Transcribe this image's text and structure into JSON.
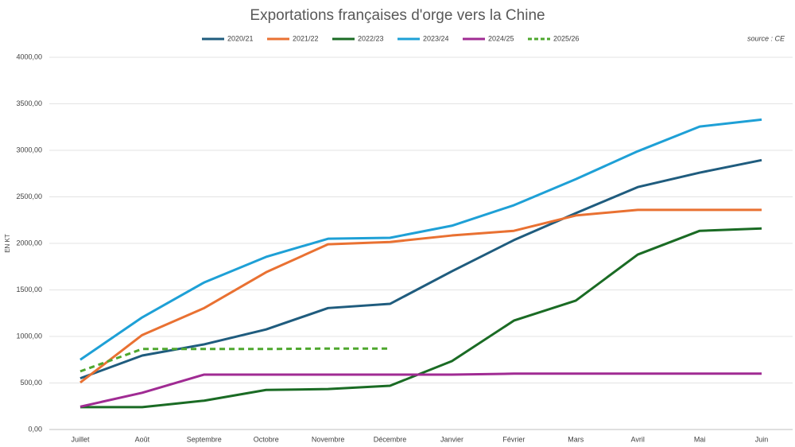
{
  "chart_data": {
    "type": "line",
    "title": "Exportations françaises d'orge vers la Chine",
    "source": "source : CE",
    "y_label": "EN KT",
    "categories": [
      "Juillet",
      "Août",
      "Septembre",
      "Octobre",
      "Novembre",
      "Décembre",
      "Janvier",
      "Février",
      "Mars",
      "Avril",
      "Mai",
      "Juin"
    ],
    "series": [
      {
        "name": "2020/21",
        "color": "#1f5c7e",
        "values": [
          550,
          795,
          915,
          1075,
          1305,
          1350,
          1700,
          2035,
          2325,
          2605,
          2760,
          2895
        ]
      },
      {
        "name": "2021/22",
        "color": "#e97132",
        "values": [
          505,
          1015,
          1305,
          1690,
          1990,
          2015,
          2085,
          2135,
          2300,
          2360,
          2360,
          2360
        ]
      },
      {
        "name": "2022/23",
        "color": "#1a6b24",
        "values": [
          240,
          240,
          310,
          425,
          435,
          470,
          735,
          1170,
          1385,
          1880,
          2135,
          2160
        ]
      },
      {
        "name": "2023/24",
        "color": "#1ea0d6",
        "values": [
          750,
          1205,
          1580,
          1855,
          2050,
          2060,
          2190,
          2410,
          2690,
          2990,
          3255,
          3330
        ]
      },
      {
        "name": "2024/25",
        "color": "#a02b93",
        "values": [
          245,
          395,
          590,
          590,
          590,
          590,
          590,
          600,
          600,
          600,
          600,
          600
        ]
      },
      {
        "name": "2025/26",
        "color": "#4ea72e",
        "dashed": true,
        "values": [
          625,
          865,
          865,
          865,
          870,
          870,
          null,
          null,
          null,
          null,
          null,
          null
        ]
      }
    ],
    "ylim": [
      0,
      4000
    ],
    "yticks": [
      {
        "value": 0,
        "label": "0,00"
      },
      {
        "value": 500,
        "label": "500,00"
      },
      {
        "value": 1000,
        "label": "1000,00"
      },
      {
        "value": 1500,
        "label": "1500,00"
      },
      {
        "value": 2000,
        "label": "2000,00"
      },
      {
        "value": 2500,
        "label": "2500,00"
      },
      {
        "value": 3000,
        "label": "3000,00"
      },
      {
        "value": 3500,
        "label": "3500,00"
      },
      {
        "value": 4000,
        "label": "4000,00"
      }
    ],
    "grid": true
  }
}
